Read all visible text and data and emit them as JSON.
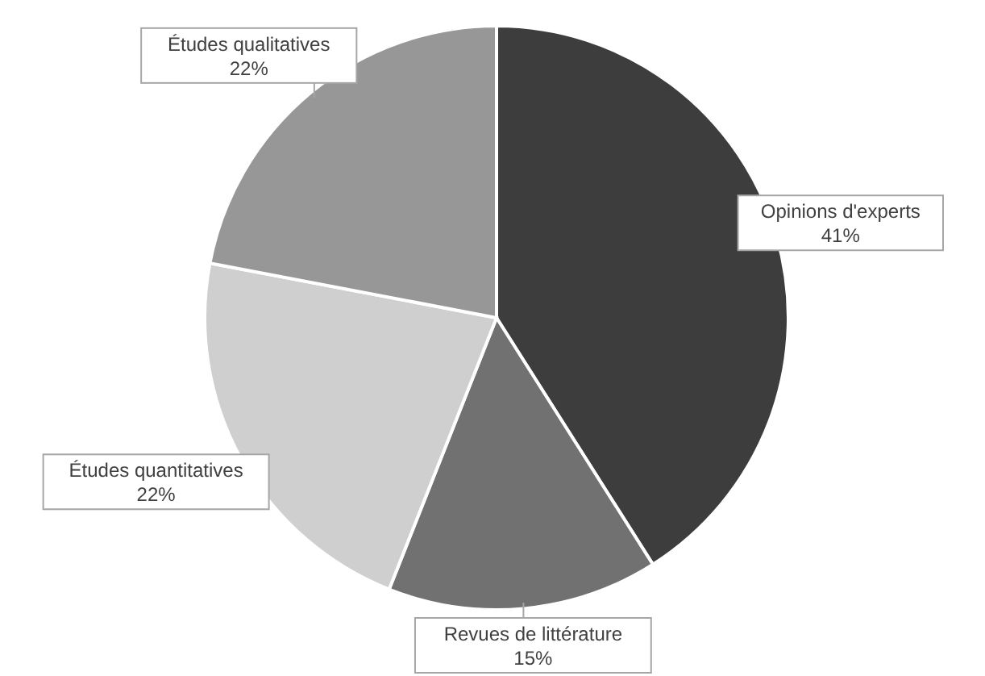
{
  "chart_data": {
    "type": "pie",
    "categories": [
      "Opinions d'experts",
      "Revues de littérature",
      "Études quantitatives",
      "Études qualitatives"
    ],
    "values": [
      41,
      15,
      22,
      22
    ],
    "colors": [
      "#3d3d3d",
      "#717171",
      "#cfcfcf",
      "#979797"
    ],
    "value_labels": [
      "41%",
      "15%",
      "22%",
      "22%"
    ]
  }
}
